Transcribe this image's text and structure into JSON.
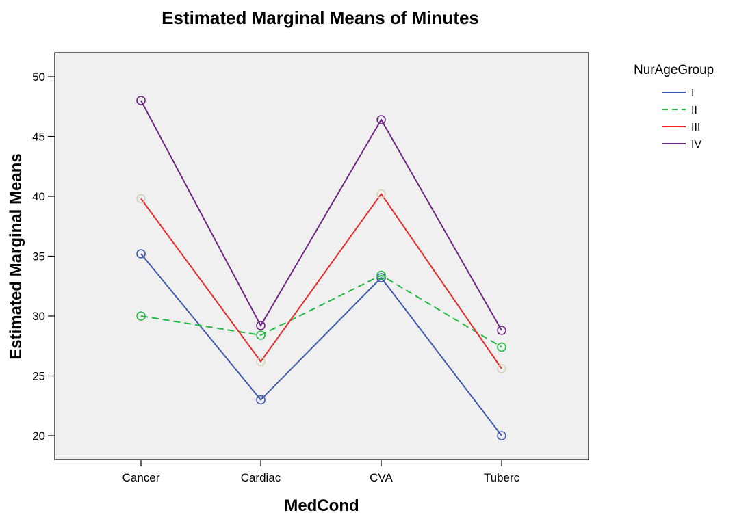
{
  "chart_data": {
    "type": "line",
    "title": "Estimated Marginal Means of Minutes",
    "xlabel": "MedCond",
    "ylabel": "Estimated Marginal Means",
    "categories": [
      "Cancer",
      "Cardiac",
      "CVA",
      "Tuberc"
    ],
    "yticks": [
      "20",
      "25",
      "30",
      "35",
      "40",
      "45",
      "50"
    ],
    "ylim": [
      18,
      52
    ],
    "grid": false,
    "plot_background": "#f0f0f0",
    "legend": {
      "title": "NurAgeGroup",
      "position": "right"
    },
    "series": [
      {
        "name": "I",
        "values": [
          35.2,
          23.0,
          33.2,
          20.0
        ],
        "color": "#3e58ac",
        "marker_color": "#3e58ac",
        "dash": "solid"
      },
      {
        "name": "II",
        "values": [
          30.0,
          28.4,
          33.4,
          27.4
        ],
        "color": "#1fba3f",
        "marker_color": "#1fba3f",
        "dash": "dashed"
      },
      {
        "name": "III",
        "values": [
          39.8,
          26.2,
          40.2,
          25.6
        ],
        "color": "#e8282b",
        "marker_color": "#d8d2b6",
        "dash": "solid"
      },
      {
        "name": "IV",
        "values": [
          48.0,
          29.2,
          46.4,
          28.8
        ],
        "color": "#6e2583",
        "marker_color": "#6e2583",
        "dash": "solid"
      }
    ]
  }
}
